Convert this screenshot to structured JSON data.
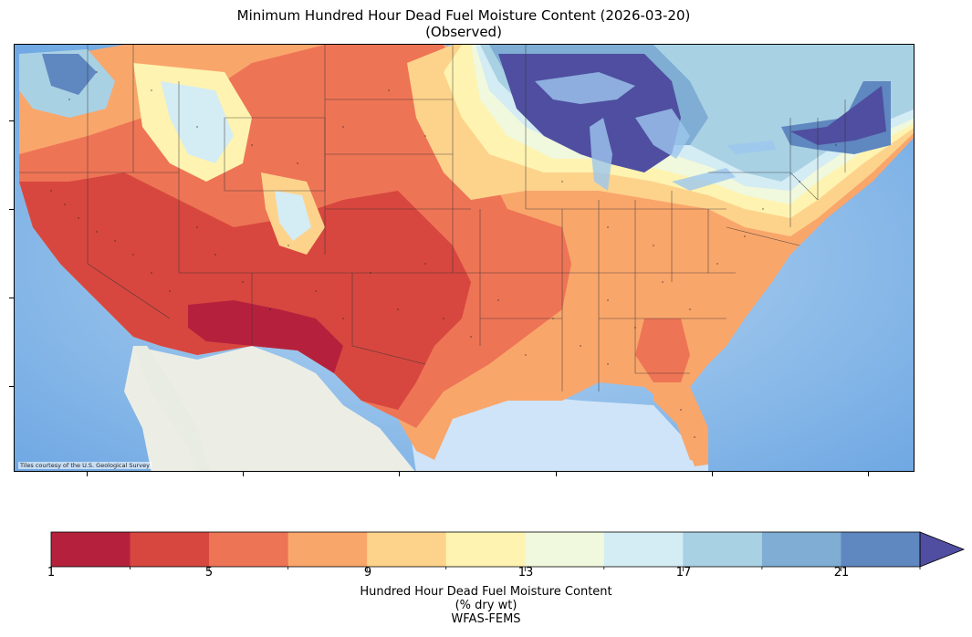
{
  "title": {
    "line1": "Minimum Hundred Hour Dead Fuel Moisture Content (2026-03-20)",
    "line2": "(Observed)"
  },
  "map": {
    "attribution": "Tiles courtesy of the U.S. Geological Survey",
    "region": "Contiguous United States",
    "basemap": "USGS topo tiles"
  },
  "colorbar": {
    "tick_labels": [
      "1",
      "5",
      "9",
      "13",
      "17",
      "21"
    ],
    "tick_values": [
      1,
      5,
      9,
      13,
      17,
      21
    ],
    "boundaries": [
      1,
      3,
      5,
      7,
      9,
      11,
      13,
      15,
      17,
      19,
      21,
      23
    ],
    "extend": "max",
    "colors": [
      "#b5213d",
      "#d7473f",
      "#ee7456",
      "#f9a66b",
      "#fdd38c",
      "#fef3b0",
      "#f0f8dd",
      "#d4ecf3",
      "#a9d1e4",
      "#7fadd3",
      "#5f87c0",
      "#4f4ea0"
    ],
    "label_line1": "Hundred Hour Dead Fuel Moisture Content",
    "label_line2": "(% dry wt)",
    "label_line3": "WFAS-FEMS"
  }
}
